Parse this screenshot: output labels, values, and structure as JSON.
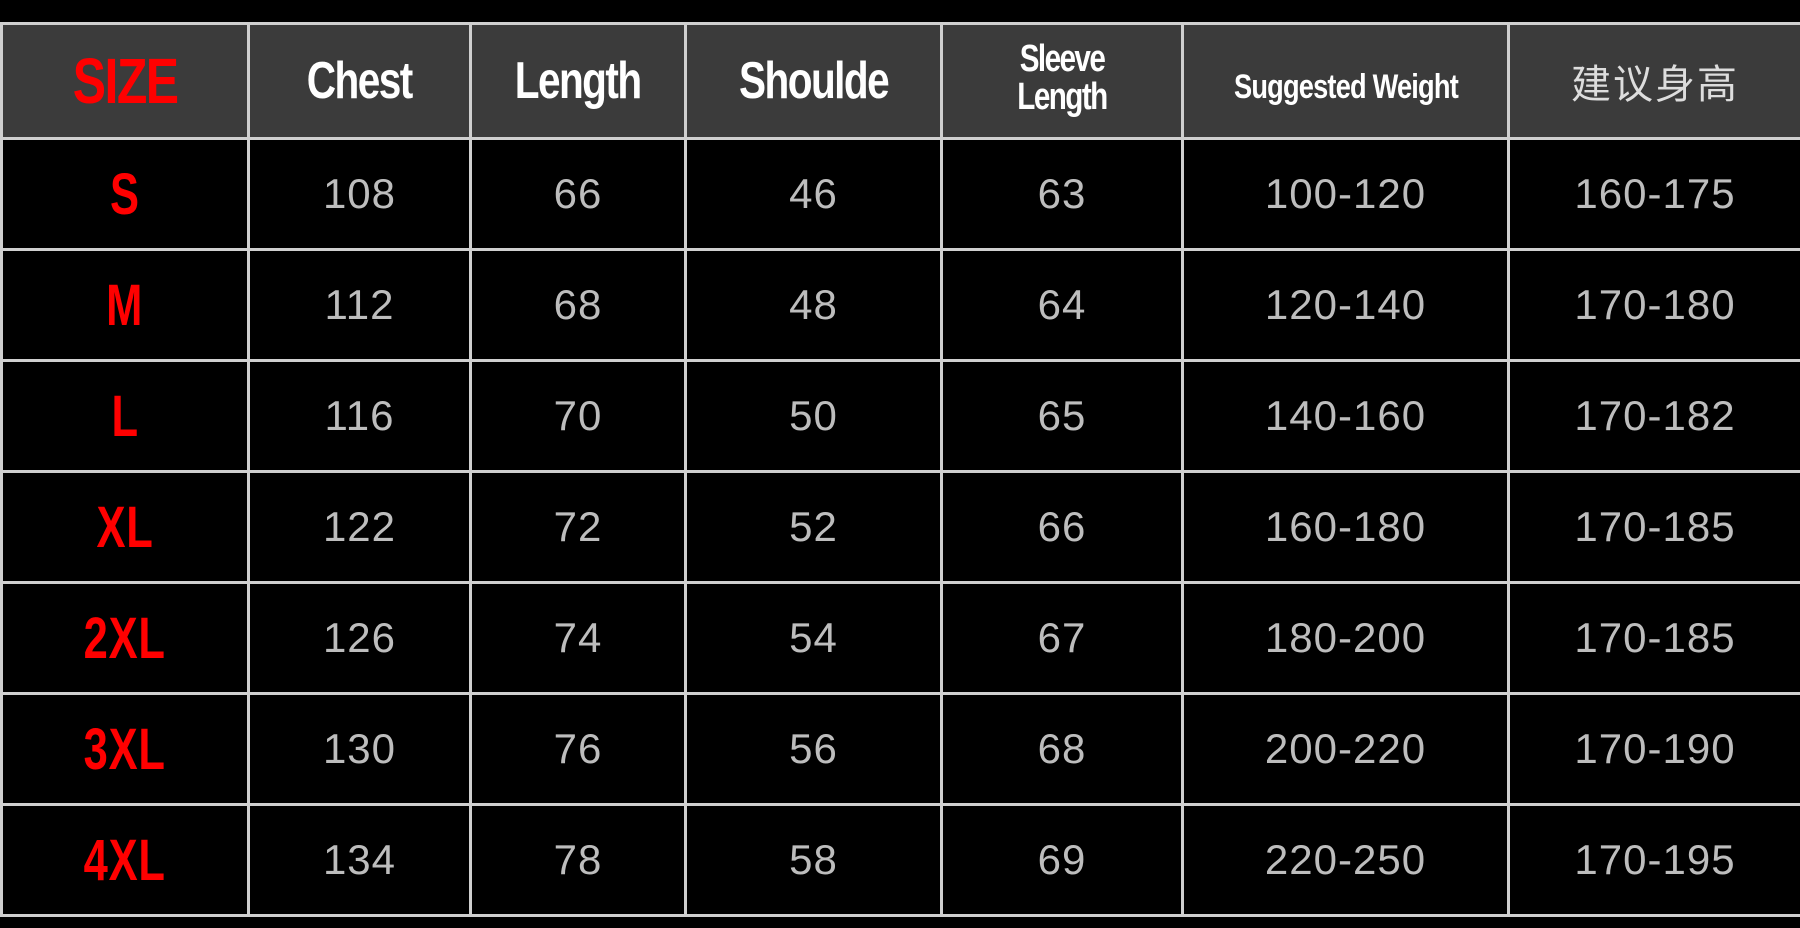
{
  "headers": [
    "SIZE",
    "Chest",
    "Length",
    "Shoulde",
    "Sleeve Length",
    "Suggested Weight",
    "建议身高"
  ],
  "rows": [
    {
      "size": "S",
      "chest": "108",
      "length": "66",
      "shoulder": "46",
      "sleeve": "63",
      "weight": "100-120",
      "height": "160-175"
    },
    {
      "size": "M",
      "chest": "112",
      "length": "68",
      "shoulder": "48",
      "sleeve": "64",
      "weight": "120-140",
      "height": "170-180"
    },
    {
      "size": "L",
      "chest": "116",
      "length": "70",
      "shoulder": "50",
      "sleeve": "65",
      "weight": "140-160",
      "height": "170-182"
    },
    {
      "size": "XL",
      "chest": "122",
      "length": "72",
      "shoulder": "52",
      "sleeve": "66",
      "weight": "160-180",
      "height": "170-185"
    },
    {
      "size": "2XL",
      "chest": "126",
      "length": "74",
      "shoulder": "54",
      "sleeve": "67",
      "weight": "180-200",
      "height": "170-185"
    },
    {
      "size": "3XL",
      "chest": "130",
      "length": "76",
      "shoulder": "56",
      "sleeve": "68",
      "weight": "200-220",
      "height": "170-190"
    },
    {
      "size": "4XL",
      "chest": "134",
      "length": "78",
      "shoulder": "58",
      "sleeve": "69",
      "weight": "220-250",
      "height": "170-195"
    }
  ],
  "colors": {
    "size_text": "#ff0000",
    "header_bg": "#3b3b3b",
    "border": "#cfcfcf",
    "value_text": "#bdbdbd"
  }
}
